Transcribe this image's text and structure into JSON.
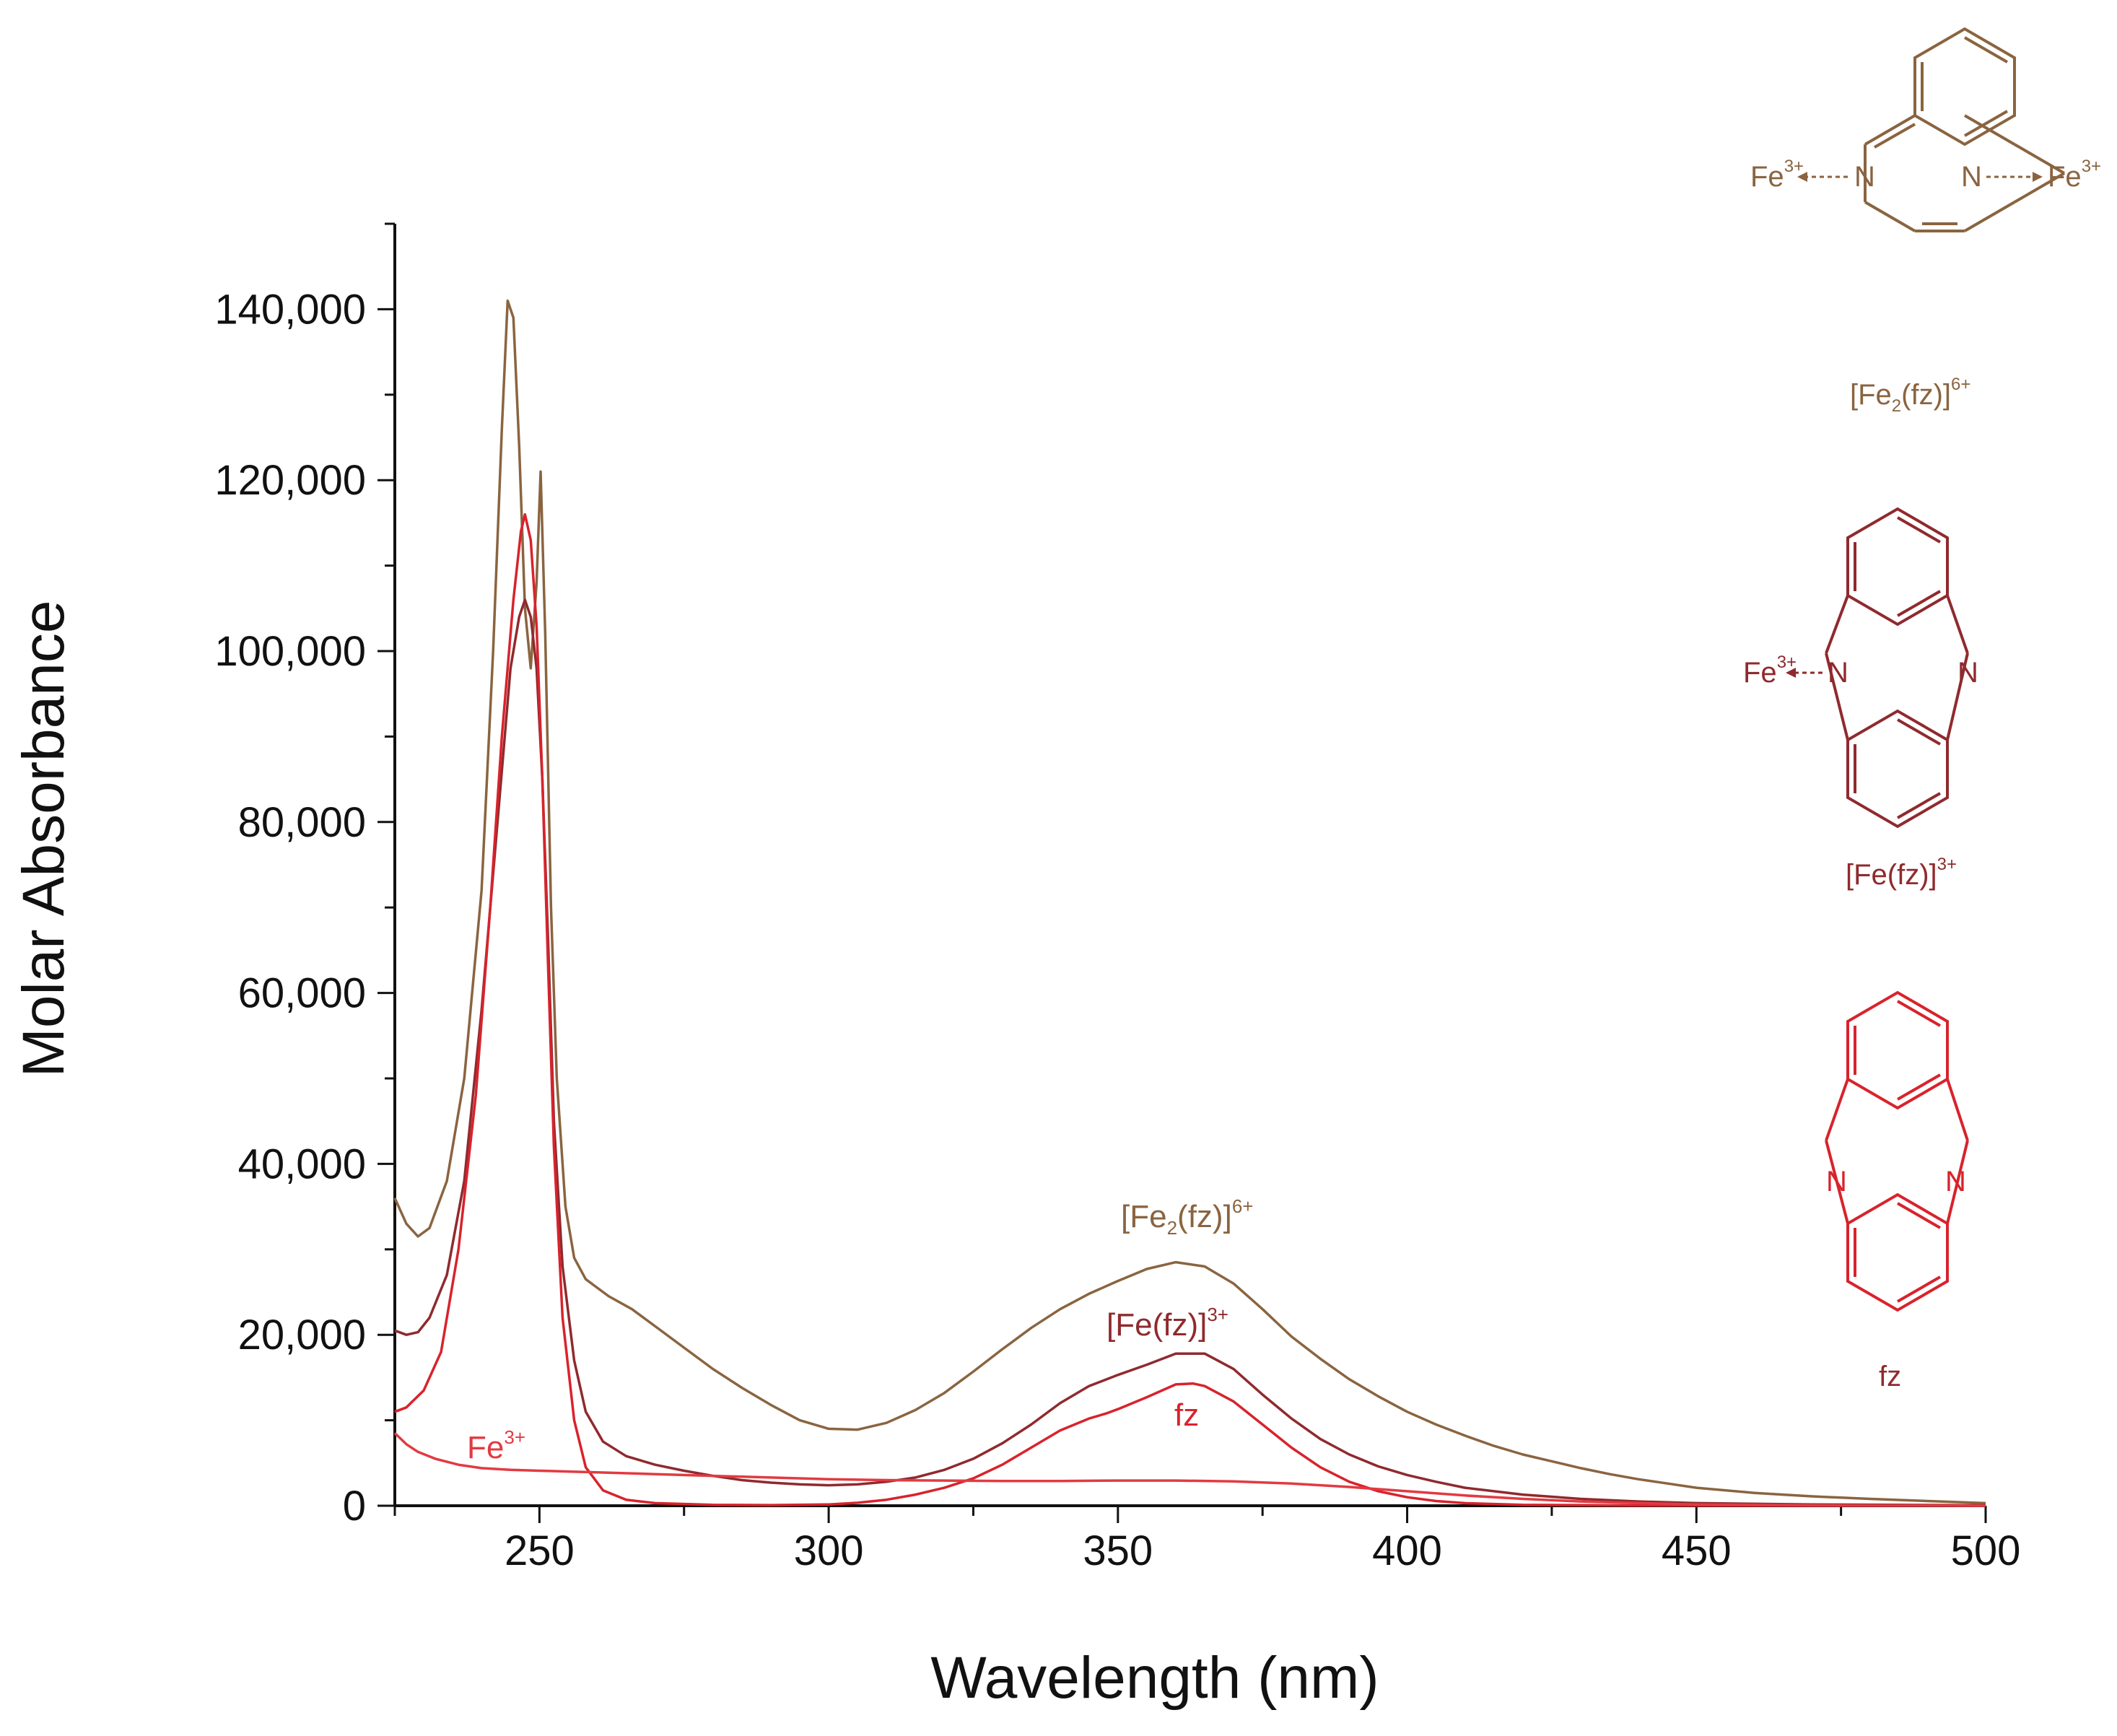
{
  "colors": {
    "fe2fz": "#8a6440",
    "fefz": "#8f2a2e",
    "fz": "#d8232c",
    "fe": "#e23a42",
    "axis": "#111111"
  },
  "chart_data": {
    "type": "line",
    "title": "",
    "xlabel": "Wavelength (nm)",
    "ylabel": "Molar Absorbance",
    "xlim": [
      225,
      500
    ],
    "ylim": [
      0,
      150000
    ],
    "x_ticks": [
      "250",
      "300",
      "350",
      "400",
      "450",
      "500"
    ],
    "x_tick_values": [
      250,
      300,
      350,
      400,
      450,
      500
    ],
    "y_ticks": [
      "0",
      "20,000",
      "40,000",
      "60,000",
      "80,000",
      "100,000",
      "120,000",
      "140,000"
    ],
    "y_tick_values": [
      0,
      20000,
      40000,
      60000,
      80000,
      100000,
      120000,
      140000
    ],
    "series": [
      {
        "name": "[Fe2(fz)]6+",
        "color": "#8a6440",
        "points": [
          [
            225,
            36000
          ],
          [
            227,
            33000
          ],
          [
            229,
            31500
          ],
          [
            231,
            32500
          ],
          [
            234,
            38000
          ],
          [
            237,
            50000
          ],
          [
            240,
            72000
          ],
          [
            242,
            100000
          ],
          [
            243.5,
            126000
          ],
          [
            244.5,
            141000
          ],
          [
            245.5,
            139000
          ],
          [
            246.5,
            124000
          ],
          [
            247.5,
            105000
          ],
          [
            248.5,
            98000
          ],
          [
            249.5,
            108000
          ],
          [
            250.2,
            121000
          ],
          [
            251,
            102000
          ],
          [
            252,
            70000
          ],
          [
            253,
            50000
          ],
          [
            254.5,
            35000
          ],
          [
            256,
            29000
          ],
          [
            258,
            26500
          ],
          [
            262,
            24500
          ],
          [
            266,
            23000
          ],
          [
            270,
            21000
          ],
          [
            275,
            18500
          ],
          [
            280,
            16000
          ],
          [
            285,
            13800
          ],
          [
            290,
            11800
          ],
          [
            295,
            10000
          ],
          [
            300,
            9000
          ],
          [
            305,
            8900
          ],
          [
            310,
            9700
          ],
          [
            315,
            11200
          ],
          [
            320,
            13200
          ],
          [
            325,
            15700
          ],
          [
            330,
            18300
          ],
          [
            335,
            20800
          ],
          [
            340,
            23000
          ],
          [
            345,
            24800
          ],
          [
            350,
            26300
          ],
          [
            355,
            27700
          ],
          [
            360,
            28500
          ],
          [
            365,
            28000
          ],
          [
            370,
            26000
          ],
          [
            375,
            23000
          ],
          [
            380,
            19800
          ],
          [
            385,
            17200
          ],
          [
            390,
            14800
          ],
          [
            395,
            12800
          ],
          [
            400,
            11000
          ],
          [
            405,
            9500
          ],
          [
            410,
            8200
          ],
          [
            415,
            7000
          ],
          [
            420,
            6000
          ],
          [
            425,
            5200
          ],
          [
            430,
            4400
          ],
          [
            435,
            3700
          ],
          [
            440,
            3100
          ],
          [
            445,
            2600
          ],
          [
            450,
            2100
          ],
          [
            460,
            1500
          ],
          [
            470,
            1100
          ],
          [
            480,
            800
          ],
          [
            490,
            550
          ],
          [
            500,
            300
          ]
        ]
      },
      {
        "name": "[Fe(fz)]3+",
        "color": "#8f2a2e",
        "points": [
          [
            225,
            20500
          ],
          [
            227,
            20000
          ],
          [
            229,
            20300
          ],
          [
            231,
            22000
          ],
          [
            234,
            27000
          ],
          [
            237,
            38000
          ],
          [
            240,
            58000
          ],
          [
            243,
            82000
          ],
          [
            245,
            98000
          ],
          [
            246.5,
            104000
          ],
          [
            247.5,
            106000
          ],
          [
            248.5,
            104000
          ],
          [
            249.5,
            98000
          ],
          [
            250.5,
            85000
          ],
          [
            251.5,
            66000
          ],
          [
            252.5,
            45000
          ],
          [
            254,
            28000
          ],
          [
            256,
            17000
          ],
          [
            258,
            11000
          ],
          [
            261,
            7500
          ],
          [
            265,
            5800
          ],
          [
            270,
            4800
          ],
          [
            275,
            4100
          ],
          [
            280,
            3500
          ],
          [
            285,
            3000
          ],
          [
            290,
            2700
          ],
          [
            295,
            2500
          ],
          [
            300,
            2400
          ],
          [
            305,
            2500
          ],
          [
            310,
            2800
          ],
          [
            315,
            3300
          ],
          [
            320,
            4200
          ],
          [
            325,
            5500
          ],
          [
            330,
            7300
          ],
          [
            335,
            9500
          ],
          [
            340,
            12000
          ],
          [
            345,
            14000
          ],
          [
            350,
            15300
          ],
          [
            355,
            16500
          ],
          [
            360,
            17800
          ],
          [
            365,
            17800
          ],
          [
            370,
            16000
          ],
          [
            375,
            13000
          ],
          [
            380,
            10200
          ],
          [
            385,
            7800
          ],
          [
            390,
            6000
          ],
          [
            395,
            4600
          ],
          [
            400,
            3600
          ],
          [
            405,
            2800
          ],
          [
            410,
            2100
          ],
          [
            420,
            1300
          ],
          [
            430,
            800
          ],
          [
            440,
            500
          ],
          [
            450,
            300
          ],
          [
            470,
            150
          ],
          [
            500,
            50
          ]
        ]
      },
      {
        "name": "fz",
        "color": "#d8232c",
        "points": [
          [
            225,
            11000
          ],
          [
            227,
            11500
          ],
          [
            230,
            13500
          ],
          [
            233,
            18000
          ],
          [
            236,
            30000
          ],
          [
            239,
            48000
          ],
          [
            241.5,
            70000
          ],
          [
            243.5,
            90000
          ],
          [
            245.5,
            106000
          ],
          [
            246.8,
            114000
          ],
          [
            247.5,
            116000
          ],
          [
            248.5,
            113000
          ],
          [
            249.5,
            103000
          ],
          [
            250.5,
            85000
          ],
          [
            251.5,
            63000
          ],
          [
            252.5,
            42000
          ],
          [
            254,
            22000
          ],
          [
            256,
            10000
          ],
          [
            258,
            4500
          ],
          [
            261,
            1800
          ],
          [
            265,
            700
          ],
          [
            270,
            300
          ],
          [
            280,
            100
          ],
          [
            290,
            80
          ],
          [
            300,
            150
          ],
          [
            305,
            350
          ],
          [
            310,
            700
          ],
          [
            315,
            1300
          ],
          [
            320,
            2100
          ],
          [
            325,
            3200
          ],
          [
            330,
            4800
          ],
          [
            335,
            6800
          ],
          [
            340,
            8800
          ],
          [
            345,
            10200
          ],
          [
            348,
            10800
          ],
          [
            350,
            11300
          ],
          [
            355,
            12700
          ],
          [
            360,
            14200
          ],
          [
            363,
            14300
          ],
          [
            365,
            14000
          ],
          [
            370,
            12200
          ],
          [
            375,
            9500
          ],
          [
            380,
            6800
          ],
          [
            385,
            4500
          ],
          [
            390,
            2800
          ],
          [
            395,
            1700
          ],
          [
            400,
            1000
          ],
          [
            405,
            550
          ],
          [
            410,
            300
          ],
          [
            420,
            100
          ],
          [
            440,
            30
          ],
          [
            500,
            0
          ]
        ]
      },
      {
        "name": "Fe3+",
        "color": "#e23a42",
        "points": [
          [
            225,
            8500
          ],
          [
            227,
            7200
          ],
          [
            229,
            6300
          ],
          [
            232,
            5500
          ],
          [
            236,
            4800
          ],
          [
            240,
            4400
          ],
          [
            245,
            4200
          ],
          [
            250,
            4100
          ],
          [
            255,
            4000
          ],
          [
            260,
            3900
          ],
          [
            270,
            3700
          ],
          [
            280,
            3500
          ],
          [
            290,
            3300
          ],
          [
            300,
            3100
          ],
          [
            310,
            3000
          ],
          [
            320,
            2950
          ],
          [
            330,
            2900
          ],
          [
            340,
            2900
          ],
          [
            350,
            2950
          ],
          [
            360,
            2950
          ],
          [
            370,
            2850
          ],
          [
            380,
            2600
          ],
          [
            390,
            2200
          ],
          [
            400,
            1700
          ],
          [
            410,
            1200
          ],
          [
            420,
            800
          ],
          [
            430,
            500
          ],
          [
            440,
            300
          ],
          [
            450,
            150
          ],
          [
            470,
            50
          ],
          [
            500,
            0
          ]
        ]
      }
    ],
    "annotations": [
      {
        "name": "fe2fz",
        "base": "[Fe",
        "sub": "2",
        "rest": "(fz)]",
        "sup": "6+"
      },
      {
        "name": "fefz",
        "base": "[Fe(fz)]",
        "sup": "3+"
      },
      {
        "name": "fz",
        "base": "fz"
      },
      {
        "name": "fe",
        "base": "Fe",
        "sup": "3+"
      }
    ]
  },
  "structures": {
    "atom_n": "N",
    "atom_fe": "Fe",
    "fe_charge": "3+",
    "fe2fz_label": {
      "base": "[Fe",
      "sub": "2",
      "rest": "(fz)]",
      "sup": "6+"
    },
    "fefz_label": {
      "base": "[Fe(fz)]",
      "sup": "3+"
    },
    "fz_label": "fz"
  }
}
